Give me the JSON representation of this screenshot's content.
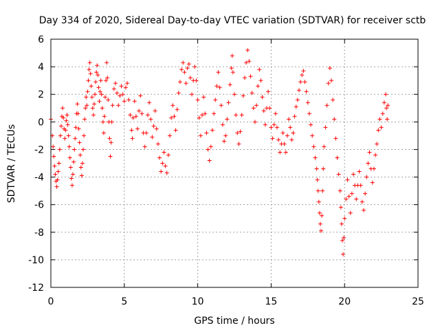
{
  "chart_data": {
    "type": "scatter",
    "title": "Day 334 of 2020, Sidereal Day-to-day VTEC variation (SDTVAR) for receiver sctb",
    "xlabel": "GPS time / hours",
    "ylabel": "SDTVAR / TECUs",
    "xlim": [
      0,
      25
    ],
    "ylim": [
      -12,
      6
    ],
    "xticks": [
      0,
      5,
      10,
      15,
      20,
      25
    ],
    "yticks": [
      -12,
      -10,
      -8,
      -6,
      -4,
      -2,
      0,
      2,
      4,
      6
    ],
    "xtick_labels": [
      "0",
      "5",
      "10",
      "15",
      "20",
      "25"
    ],
    "ytick_labels": [
      "-12",
      "-10",
      "-8",
      "-6",
      "-4",
      "-2",
      "0",
      "2",
      "4",
      "6"
    ],
    "grid": true,
    "marker": "+",
    "color": "#ff0000",
    "series": [
      {
        "name": "SDTVAR",
        "points": [
          [
            0.0,
            0.2
          ],
          [
            0.1,
            -1.0
          ],
          [
            0.15,
            -1.8
          ],
          [
            0.2,
            -2.5
          ],
          [
            0.25,
            -3.2
          ],
          [
            0.3,
            -3.8
          ],
          [
            0.35,
            -4.3
          ],
          [
            0.4,
            -4.7
          ],
          [
            0.45,
            -4.2
          ],
          [
            0.5,
            -3.6
          ],
          [
            0.55,
            -3.0
          ],
          [
            0.6,
            -2.0
          ],
          [
            0.65,
            -1.0
          ],
          [
            0.7,
            -0.3
          ],
          [
            0.75,
            0.4
          ],
          [
            0.8,
            1.0
          ],
          [
            0.85,
            0.3
          ],
          [
            0.9,
            -0.5
          ],
          [
            0.95,
            -1.2
          ],
          [
            1.0,
            -0.6
          ],
          [
            1.05,
            0.1
          ],
          [
            1.1,
            0.5
          ],
          [
            1.15,
            -0.2
          ],
          [
            1.2,
            -1.0
          ],
          [
            1.25,
            -1.8
          ],
          [
            1.3,
            -2.6
          ],
          [
            1.35,
            -3.3
          ],
          [
            1.4,
            -4.1
          ],
          [
            1.45,
            -4.6
          ],
          [
            1.5,
            -3.8
          ],
          [
            1.55,
            -2.9
          ],
          [
            1.6,
            -2.0
          ],
          [
            1.65,
            -1.2
          ],
          [
            1.7,
            -0.4
          ],
          [
            1.75,
            0.6
          ],
          [
            1.8,
            1.3
          ],
          [
            1.85,
            0.6
          ],
          [
            1.9,
            -0.5
          ],
          [
            1.95,
            -1.5
          ],
          [
            2.0,
            -2.4
          ],
          [
            2.05,
            -3.3
          ],
          [
            2.1,
            -3.9
          ],
          [
            2.15,
            -3.0
          ],
          [
            2.2,
            -2.0
          ],
          [
            2.25,
            -1.0
          ],
          [
            2.3,
            0.2
          ],
          [
            2.35,
            1.0
          ],
          [
            2.4,
            1.8
          ],
          [
            2.45,
            1.2
          ],
          [
            2.5,
            2.2
          ],
          [
            2.55,
            3.0
          ],
          [
            2.6,
            3.8
          ],
          [
            2.65,
            4.3
          ],
          [
            2.7,
            3.5
          ],
          [
            2.75,
            2.6
          ],
          [
            2.8,
            1.8
          ],
          [
            2.85,
            1.0
          ],
          [
            2.9,
            0.5
          ],
          [
            2.95,
            1.3
          ],
          [
            3.0,
            2.0
          ],
          [
            3.05,
            2.9
          ],
          [
            3.1,
            3.6
          ],
          [
            3.15,
            4.1
          ],
          [
            3.2,
            3.4
          ],
          [
            3.25,
            2.5
          ],
          [
            3.3,
            1.5
          ],
          [
            3.35,
            2.2
          ],
          [
            3.4,
            3.0
          ],
          [
            3.45,
            2.0
          ],
          [
            3.5,
            1.0
          ],
          [
            3.55,
            0.0
          ],
          [
            3.6,
            -0.8
          ],
          [
            3.65,
            0.4
          ],
          [
            3.7,
            1.8
          ],
          [
            3.75,
            3.0
          ],
          [
            3.8,
            4.3
          ],
          [
            3.85,
            3.2
          ],
          [
            3.9,
            1.6
          ],
          [
            3.95,
            0.0
          ],
          [
            4.0,
            -1.2
          ],
          [
            4.05,
            -2.5
          ],
          [
            4.1,
            -1.5
          ],
          [
            4.15,
            0.0
          ],
          [
            4.2,
            1.2
          ],
          [
            4.3,
            2.4
          ],
          [
            4.4,
            2.8
          ],
          [
            4.5,
            2.1
          ],
          [
            4.6,
            1.2
          ],
          [
            4.7,
            1.9
          ],
          [
            4.8,
            2.6
          ],
          [
            4.9,
            2.0
          ],
          [
            5.0,
            1.5
          ],
          [
            5.1,
            2.5
          ],
          [
            5.2,
            2.8
          ],
          [
            5.3,
            1.6
          ],
          [
            5.4,
            0.5
          ],
          [
            5.5,
            -0.6
          ],
          [
            5.55,
            -1.2
          ],
          [
            5.6,
            0.3
          ],
          [
            5.7,
            1.5
          ],
          [
            5.8,
            0.4
          ],
          [
            5.9,
            -0.5
          ],
          [
            6.0,
            0.8
          ],
          [
            6.1,
            1.9
          ],
          [
            6.2,
            0.6
          ],
          [
            6.3,
            -0.8
          ],
          [
            6.4,
            -1.8
          ],
          [
            6.5,
            -0.8
          ],
          [
            6.6,
            0.5
          ],
          [
            6.7,
            1.4
          ],
          [
            6.8,
            0.2
          ],
          [
            6.9,
            -1.1
          ],
          [
            7.0,
            -0.3
          ],
          [
            7.1,
            0.8
          ],
          [
            7.2,
            -0.5
          ],
          [
            7.3,
            -1.6
          ],
          [
            7.4,
            -2.6
          ],
          [
            7.5,
            -3.6
          ],
          [
            7.6,
            -3.0
          ],
          [
            7.7,
            -2.2
          ],
          [
            7.8,
            -3.2
          ],
          [
            7.9,
            -3.7
          ],
          [
            8.0,
            -2.4
          ],
          [
            8.1,
            -1.0
          ],
          [
            8.2,
            0.3
          ],
          [
            8.3,
            1.2
          ],
          [
            8.4,
            0.4
          ],
          [
            8.5,
            -0.6
          ],
          [
            8.6,
            0.9
          ],
          [
            8.7,
            2.1
          ],
          [
            8.8,
            2.9
          ],
          [
            8.9,
            3.8
          ],
          [
            9.0,
            4.3
          ],
          [
            9.1,
            3.6
          ],
          [
            9.2,
            2.8
          ],
          [
            9.3,
            3.9
          ],
          [
            9.4,
            4.2
          ],
          [
            9.5,
            3.2
          ],
          [
            9.6,
            2.0
          ],
          [
            9.7,
            3.0
          ],
          [
            9.8,
            4.0
          ],
          [
            9.9,
            3.0
          ],
          [
            10.0,
            1.6
          ],
          [
            10.1,
            0.3
          ],
          [
            10.2,
            -1.0
          ],
          [
            10.3,
            0.5
          ],
          [
            10.4,
            1.8
          ],
          [
            10.5,
            0.6
          ],
          [
            10.6,
            -0.8
          ],
          [
            10.7,
            -2.0
          ],
          [
            10.8,
            -2.8
          ],
          [
            10.9,
            -1.8
          ],
          [
            11.0,
            -0.6
          ],
          [
            11.1,
            0.6
          ],
          [
            11.2,
            1.6
          ],
          [
            11.3,
            2.6
          ],
          [
            11.4,
            3.6
          ],
          [
            11.5,
            2.5
          ],
          [
            11.6,
            1.2
          ],
          [
            11.7,
            -0.2
          ],
          [
            11.8,
            -1.4
          ],
          [
            11.9,
            -1.0
          ],
          [
            12.0,
            0.2
          ],
          [
            12.1,
            1.4
          ],
          [
            12.2,
            2.7
          ],
          [
            12.3,
            3.9
          ],
          [
            12.35,
            4.8
          ],
          [
            12.4,
            3.6
          ],
          [
            12.5,
            2.0
          ],
          [
            12.6,
            0.5
          ],
          [
            12.7,
            -0.8
          ],
          [
            12.8,
            -1.6
          ],
          [
            12.9,
            -0.7
          ],
          [
            13.0,
            0.5
          ],
          [
            13.1,
            1.9
          ],
          [
            13.2,
            3.2
          ],
          [
            13.3,
            4.3
          ],
          [
            13.4,
            5.2
          ],
          [
            13.5,
            4.4
          ],
          [
            13.6,
            3.3
          ],
          [
            13.7,
            2.1
          ],
          [
            13.8,
            1.0
          ],
          [
            13.9,
            0.0
          ],
          [
            14.0,
            1.2
          ],
          [
            14.1,
            2.6
          ],
          [
            14.2,
            3.8
          ],
          [
            14.3,
            3.0
          ],
          [
            14.4,
            1.8
          ],
          [
            14.5,
            0.8
          ],
          [
            14.6,
            -0.2
          ],
          [
            14.7,
            1.0
          ],
          [
            14.8,
            2.2
          ],
          [
            14.9,
            1.0
          ],
          [
            15.0,
            -0.4
          ],
          [
            15.1,
            -1.2
          ],
          [
            15.2,
            -0.2
          ],
          [
            15.3,
            0.6
          ],
          [
            15.4,
            -0.4
          ],
          [
            15.5,
            -1.3
          ],
          [
            15.6,
            -2.2
          ],
          [
            15.7,
            -1.6
          ],
          [
            15.8,
            -0.8
          ],
          [
            15.9,
            -1.6
          ],
          [
            16.0,
            -2.2
          ],
          [
            16.1,
            -1.0
          ],
          [
            16.2,
            0.2
          ],
          [
            16.3,
            -0.4
          ],
          [
            16.4,
            -1.3
          ],
          [
            16.5,
            -0.8
          ],
          [
            16.6,
            0.4
          ],
          [
            16.7,
            1.1
          ],
          [
            16.8,
            1.6
          ],
          [
            16.9,
            2.3
          ],
          [
            17.0,
            2.9
          ],
          [
            17.1,
            3.4
          ],
          [
            17.2,
            3.7
          ],
          [
            17.3,
            2.9
          ],
          [
            17.4,
            2.2
          ],
          [
            17.5,
            1.4
          ],
          [
            17.6,
            0.6
          ],
          [
            17.7,
            -0.2
          ],
          [
            17.8,
            -1.0
          ],
          [
            17.9,
            -1.8
          ],
          [
            18.0,
            -2.6
          ],
          [
            18.1,
            -3.4
          ],
          [
            18.15,
            -4.2
          ],
          [
            18.2,
            -5.0
          ],
          [
            18.25,
            -5.8
          ],
          [
            18.3,
            -6.6
          ],
          [
            18.35,
            -7.4
          ],
          [
            18.4,
            -7.9
          ],
          [
            18.45,
            -6.8
          ],
          [
            18.5,
            -5.0
          ],
          [
            18.55,
            -3.4
          ],
          [
            18.6,
            -1.8
          ],
          [
            18.7,
            -0.4
          ],
          [
            18.8,
            1.2
          ],
          [
            18.9,
            2.8
          ],
          [
            19.0,
            3.9
          ],
          [
            19.1,
            3.0
          ],
          [
            19.2,
            1.6
          ],
          [
            19.3,
            0.2
          ],
          [
            19.4,
            -1.2
          ],
          [
            19.5,
            -2.6
          ],
          [
            19.6,
            -3.8
          ],
          [
            19.7,
            -5.0
          ],
          [
            19.75,
            -6.2
          ],
          [
            19.8,
            -7.4
          ],
          [
            19.85,
            -8.6
          ],
          [
            19.9,
            -9.6
          ],
          [
            19.95,
            -8.4
          ],
          [
            20.0,
            -7.0
          ],
          [
            20.1,
            -5.6
          ],
          [
            20.2,
            -4.2
          ],
          [
            20.3,
            -5.4
          ],
          [
            20.4,
            -6.6
          ],
          [
            20.5,
            -5.2
          ],
          [
            20.6,
            -3.8
          ],
          [
            20.7,
            -4.6
          ],
          [
            20.8,
            -5.6
          ],
          [
            20.9,
            -4.6
          ],
          [
            21.0,
            -3.6
          ],
          [
            21.1,
            -4.6
          ],
          [
            21.2,
            -5.8
          ],
          [
            21.3,
            -6.4
          ],
          [
            21.4,
            -5.2
          ],
          [
            21.5,
            -4.0
          ],
          [
            21.6,
            -3.0
          ],
          [
            21.7,
            -2.2
          ],
          [
            21.8,
            -3.4
          ],
          [
            21.9,
            -4.4
          ],
          [
            22.0,
            -3.4
          ],
          [
            22.1,
            -2.4
          ],
          [
            22.2,
            -1.6
          ],
          [
            22.3,
            -0.6
          ],
          [
            22.4,
            0.2
          ],
          [
            22.5,
            -0.4
          ],
          [
            22.6,
            0.6
          ],
          [
            22.7,
            1.4
          ],
          [
            22.8,
            2.0
          ],
          [
            22.85,
            1.0
          ],
          [
            22.9,
            0.2
          ],
          [
            22.95,
            1.2
          ]
        ]
      }
    ]
  }
}
